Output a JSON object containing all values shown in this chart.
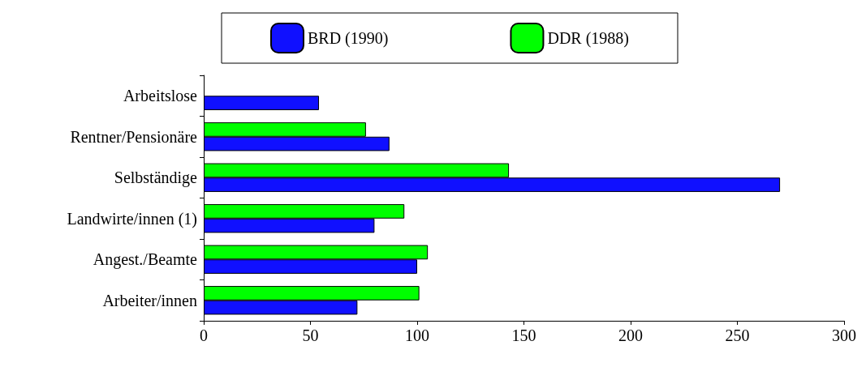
{
  "chart_data": {
    "type": "bar",
    "orientation": "horizontal",
    "categories": [
      "Arbeitslose",
      "Rentner/Pensionäre",
      "Selbständige",
      "Landwirte/innen (1)",
      "Angest./Beamte",
      "Arbeiter/innen"
    ],
    "series": [
      {
        "name": "DDR (1988)",
        "color": "#00ff00",
        "values": [
          null,
          76,
          143,
          94,
          105,
          101
        ]
      },
      {
        "name": "BRD (1990)",
        "color": "#1010ff",
        "values": [
          54,
          87,
          270,
          80,
          100,
          72
        ]
      }
    ],
    "xlim": [
      0,
      300
    ],
    "xticks": [
      0,
      50,
      100,
      150,
      200,
      250,
      300
    ],
    "grid": false,
    "legend": "top"
  }
}
